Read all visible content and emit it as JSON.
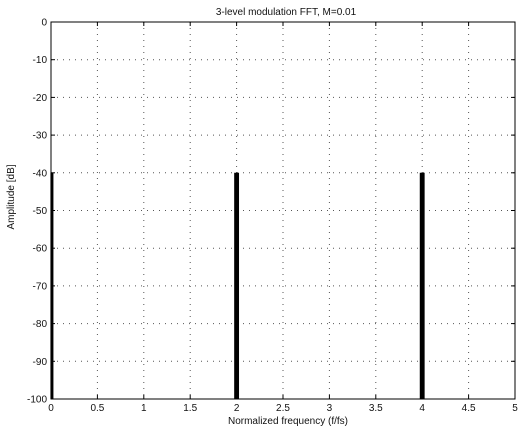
{
  "chart_data": {
    "type": "bar",
    "title": "3-level modulation FFT, M=0.01",
    "xlabel": "Normalized frequency (f/fs)",
    "ylabel": "Amplitude [dB]",
    "xlim": [
      0,
      5
    ],
    "ylim": [
      -100,
      0
    ],
    "xticks": [
      0,
      0.5,
      1,
      1.5,
      2,
      2.5,
      3,
      3.5,
      4,
      4.5,
      5
    ],
    "xtick_labels": [
      "0",
      "0.5",
      "1",
      "1.5",
      "2",
      "2.5",
      "3",
      "3.5",
      "4",
      "4.5",
      "5"
    ],
    "yticks": [
      0,
      -10,
      -20,
      -30,
      -40,
      -50,
      -60,
      -70,
      -80,
      -90,
      -100
    ],
    "ytick_labels": [
      "0",
      "-10",
      "-20",
      "-30",
      "-40",
      "-50",
      "-60",
      "-70",
      "-80",
      "-90",
      "-100"
    ],
    "grid": true,
    "baseline": -100,
    "series": [
      {
        "x": [
          0.01,
          1.99,
          2.01,
          3.99,
          4.01
        ],
        "values": [
          -40,
          -40,
          -40,
          -40,
          -40
        ]
      }
    ],
    "color": "#000000",
    "grid_color": "#555555"
  }
}
